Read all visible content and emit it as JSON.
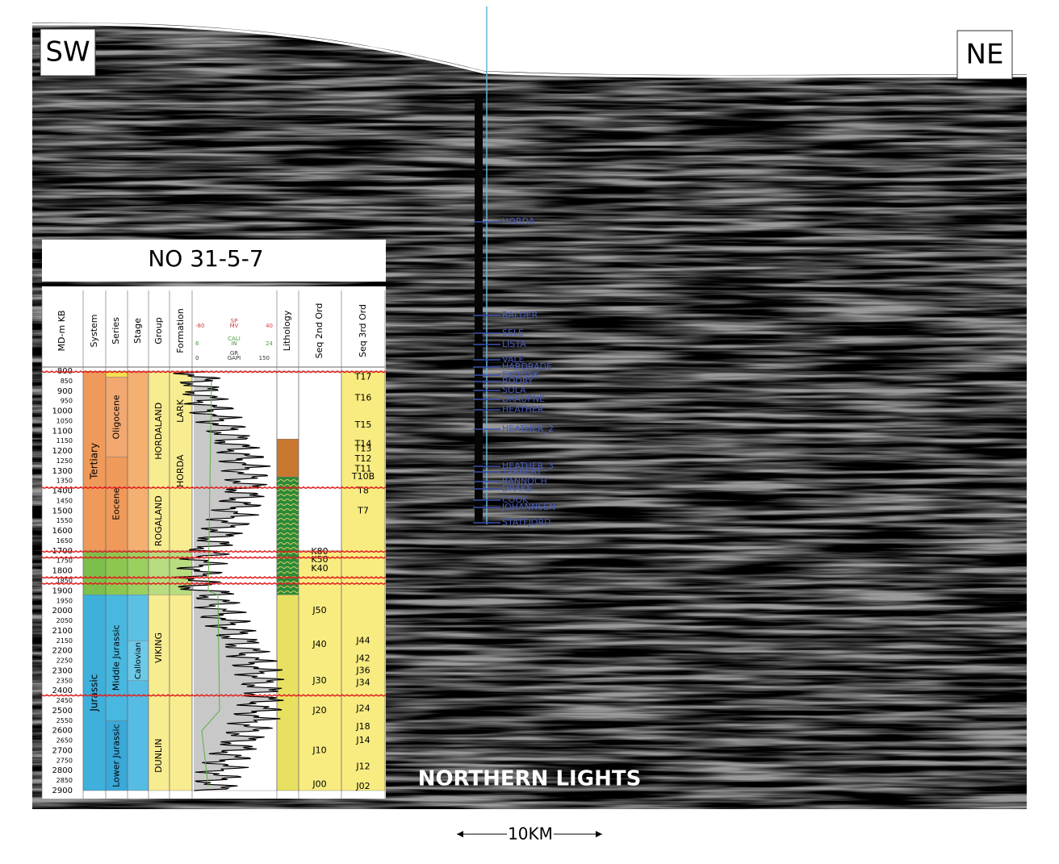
{
  "labels": {
    "sw": "SW",
    "ne": "NE",
    "well": "NO 31-5-7",
    "field": "NORTHERN LIGHTS",
    "scale": "10KM"
  },
  "well_tops": [
    "HORDA",
    "BALDER",
    "SELE",
    "LISTA",
    "VALE",
    "HARDRADE",
    "EKOFISK",
    "RODBY",
    "SOLA",
    "DRAUPNE",
    "HEATHER",
    "HEATHER_2",
    "HEATHER_3",
    "TARBERT",
    "RANNOCH",
    "DRAKE",
    "COOK",
    "JOHANNSEN",
    "STATFJORD"
  ],
  "log": {
    "headers": [
      "MD-m KB",
      "System",
      "Series",
      "Stage",
      "Group",
      "Formation",
      "Lithology",
      "Seq 2nd Ord",
      "Seq 3rd Ord"
    ],
    "curves": [
      "SP",
      "MV",
      "CALI",
      "IN",
      "GR",
      "GAPI"
    ],
    "curve_scales": [
      -80,
      40,
      6,
      24,
      0,
      150
    ],
    "depths": [
      800,
      850,
      900,
      950,
      1000,
      1050,
      1100,
      1150,
      1200,
      1250,
      1300,
      1350,
      1400,
      1450,
      1500,
      1550,
      1600,
      1650,
      1700,
      1750,
      1800,
      1850,
      1900,
      1950,
      2000,
      2050,
      2100,
      2150,
      2200,
      2250,
      2300,
      2350,
      2400,
      2450,
      2500,
      2550,
      2600,
      2650,
      2700,
      2750,
      2800,
      2850,
      2900
    ],
    "system": [
      "Tertiary",
      "Jurassic"
    ],
    "series": [
      "Oligocene",
      "Eocene",
      "Middle Jurassic",
      "Lower Jurassic"
    ],
    "stage": [
      "Callovian"
    ],
    "group": [
      "HORDALAND",
      "ROGALAND",
      "VIKING",
      "DUNLIN"
    ],
    "formation": [
      "LARK",
      "HORDA"
    ],
    "seq2": [
      "K80",
      "K50",
      "K40",
      "J50",
      "J40",
      "J30",
      "J20",
      "J10",
      "J00"
    ],
    "seq3": [
      "T17",
      "T16",
      "T15",
      "T14",
      "T13",
      "T12",
      "T11",
      "T10B",
      "T8",
      "T7",
      "J44",
      "J42",
      "J36",
      "J34",
      "J24",
      "J18",
      "J14",
      "J12",
      "J02"
    ]
  }
}
